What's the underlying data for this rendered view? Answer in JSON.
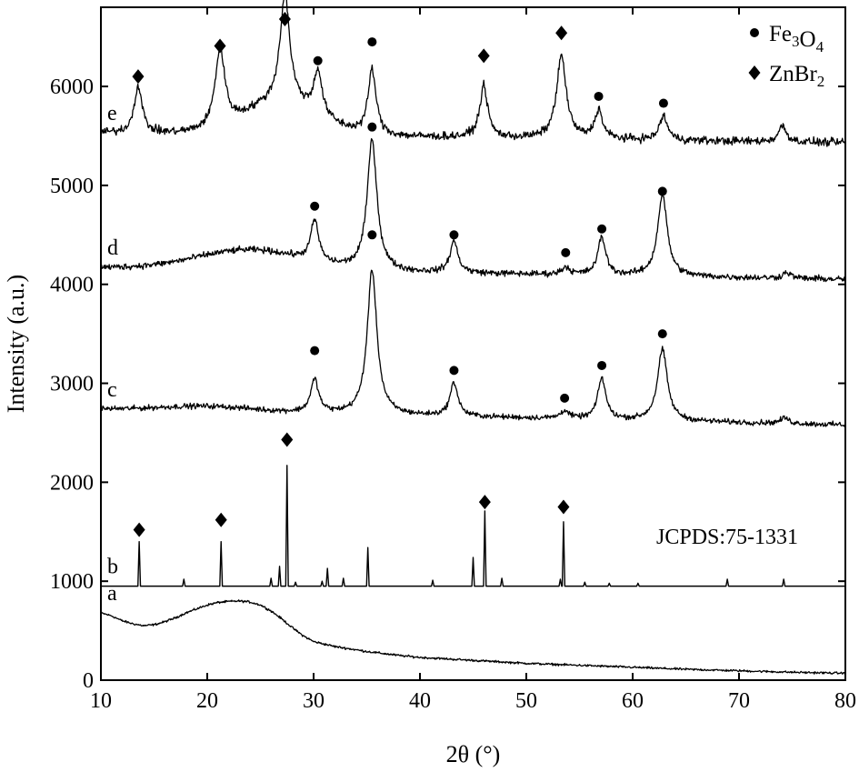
{
  "chart_data": {
    "type": "line",
    "xlabel": "2θ (°)",
    "ylabel": "Intensity (a.u.)",
    "xlim": [
      10,
      80
    ],
    "ylim": [
      0,
      6800
    ],
    "x_ticks": [
      "10",
      "20",
      "30",
      "40",
      "50",
      "60",
      "70",
      "80"
    ],
    "y_ticks": [
      "0",
      "1000",
      "2000",
      "3000",
      "4000",
      "5000",
      "6000"
    ],
    "annotation": "JCPDS:75-1331",
    "legend": {
      "position": "top-right",
      "entries": [
        {
          "marker": "circle",
          "label": "Fe3O4"
        },
        {
          "marker": "diamond",
          "label": "ZnBr2"
        }
      ]
    },
    "series": [
      {
        "name": "a",
        "type": "amorphous",
        "noise": 12,
        "points": [
          [
            10,
            680
          ],
          [
            11,
            650
          ],
          [
            12,
            600
          ],
          [
            13,
            570
          ],
          [
            14,
            550
          ],
          [
            15,
            560
          ],
          [
            16,
            590
          ],
          [
            17,
            630
          ],
          [
            18,
            680
          ],
          [
            19,
            720
          ],
          [
            20,
            760
          ],
          [
            21,
            785
          ],
          [
            22,
            795
          ],
          [
            23,
            800
          ],
          [
            24,
            790
          ],
          [
            25,
            760
          ],
          [
            26,
            700
          ],
          [
            27,
            620
          ],
          [
            28,
            530
          ],
          [
            29,
            450
          ],
          [
            30,
            390
          ],
          [
            32,
            340
          ],
          [
            35,
            290
          ],
          [
            38,
            250
          ],
          [
            40,
            230
          ],
          [
            45,
            200
          ],
          [
            50,
            170
          ],
          [
            55,
            150
          ],
          [
            60,
            130
          ],
          [
            65,
            110
          ],
          [
            70,
            95
          ],
          [
            75,
            80
          ],
          [
            80,
            70
          ]
        ]
      },
      {
        "name": "b",
        "type": "reference",
        "baseline": 950,
        "peaks": [
          [
            13.6,
            1400
          ],
          [
            17.8,
            1020
          ],
          [
            21.3,
            1400
          ],
          [
            26.0,
            1030
          ],
          [
            26.8,
            1150
          ],
          [
            27.5,
            2170
          ],
          [
            28.3,
            990
          ],
          [
            30.8,
            1000
          ],
          [
            31.3,
            1130
          ],
          [
            32.8,
            1030
          ],
          [
            35.1,
            1340
          ],
          [
            41.2,
            1010
          ],
          [
            45.0,
            1240
          ],
          [
            46.1,
            1710
          ],
          [
            47.7,
            1030
          ],
          [
            53.2,
            1020
          ],
          [
            53.5,
            1600
          ],
          [
            55.5,
            990
          ],
          [
            57.8,
            980
          ],
          [
            60.5,
            980
          ],
          [
            68.9,
            1020
          ],
          [
            74.2,
            1020
          ]
        ]
      },
      {
        "name": "c",
        "type": "pattern",
        "baseline_start": 2740,
        "baseline_end": 2580,
        "noise": 30,
        "hump": {
          "center": 20,
          "height": 50,
          "width": 6
        },
        "peaks": [
          [
            30.1,
            3030
          ],
          [
            35.5,
            4140
          ],
          [
            43.2,
            3000
          ],
          [
            53.6,
            2720
          ],
          [
            57.1,
            3050
          ],
          [
            62.8,
            3340
          ],
          [
            74.3,
            2650
          ]
        ]
      },
      {
        "name": "d",
        "type": "pattern",
        "baseline_start": 4170,
        "baseline_end": 4050,
        "noise": 35,
        "hump": {
          "center": 24,
          "height": 200,
          "width": 7
        },
        "peaks": [
          [
            30.1,
            4550
          ],
          [
            35.5,
            5450
          ],
          [
            43.2,
            4430
          ],
          [
            53.7,
            4170
          ],
          [
            57.1,
            4470
          ],
          [
            62.8,
            4900
          ],
          [
            74.5,
            4120
          ]
        ]
      },
      {
        "name": "e",
        "type": "pattern",
        "baseline_start": 5530,
        "baseline_end": 5430,
        "noise": 45,
        "hump": {
          "center": 27,
          "height": 320,
          "width": 5
        },
        "peaks": [
          [
            13.5,
            6000
          ],
          [
            21.2,
            6300
          ],
          [
            27.3,
            6600
          ],
          [
            30.4,
            5950
          ],
          [
            35.5,
            6150
          ],
          [
            46.0,
            6000
          ],
          [
            53.3,
            6300
          ],
          [
            56.8,
            5750
          ],
          [
            62.9,
            5700
          ],
          [
            74.1,
            5600
          ]
        ]
      }
    ],
    "markers": [
      {
        "shape": "diamond",
        "x": 13.6,
        "y": 1520
      },
      {
        "shape": "diamond",
        "x": 21.3,
        "y": 1620
      },
      {
        "shape": "diamond",
        "x": 27.5,
        "y": 2430
      },
      {
        "shape": "diamond",
        "x": 46.1,
        "y": 1800
      },
      {
        "shape": "diamond",
        "x": 53.5,
        "y": 1750
      },
      {
        "shape": "circle",
        "x": 30.1,
        "y": 3330
      },
      {
        "shape": "circle",
        "x": 35.5,
        "y": 4500
      },
      {
        "shape": "circle",
        "x": 43.2,
        "y": 3130
      },
      {
        "shape": "circle",
        "x": 53.6,
        "y": 2850
      },
      {
        "shape": "circle",
        "x": 57.1,
        "y": 3180
      },
      {
        "shape": "circle",
        "x": 62.8,
        "y": 3500
      },
      {
        "shape": "circle",
        "x": 30.1,
        "y": 4790
      },
      {
        "shape": "circle",
        "x": 35.5,
        "y": 5590
      },
      {
        "shape": "circle",
        "x": 43.2,
        "y": 4500
      },
      {
        "shape": "circle",
        "x": 53.7,
        "y": 4320
      },
      {
        "shape": "circle",
        "x": 57.1,
        "y": 4560
      },
      {
        "shape": "circle",
        "x": 62.8,
        "y": 4940
      },
      {
        "shape": "diamond",
        "x": 13.5,
        "y": 6100
      },
      {
        "shape": "diamond",
        "x": 21.2,
        "y": 6410
      },
      {
        "shape": "diamond",
        "x": 27.3,
        "y": 6680
      },
      {
        "shape": "circle",
        "x": 30.4,
        "y": 6260
      },
      {
        "shape": "circle",
        "x": 35.5,
        "y": 6450
      },
      {
        "shape": "diamond",
        "x": 46.0,
        "y": 6310
      },
      {
        "shape": "diamond",
        "x": 53.3,
        "y": 6540
      },
      {
        "shape": "circle",
        "x": 56.8,
        "y": 5900
      },
      {
        "shape": "circle",
        "x": 62.9,
        "y": 5830
      }
    ]
  }
}
